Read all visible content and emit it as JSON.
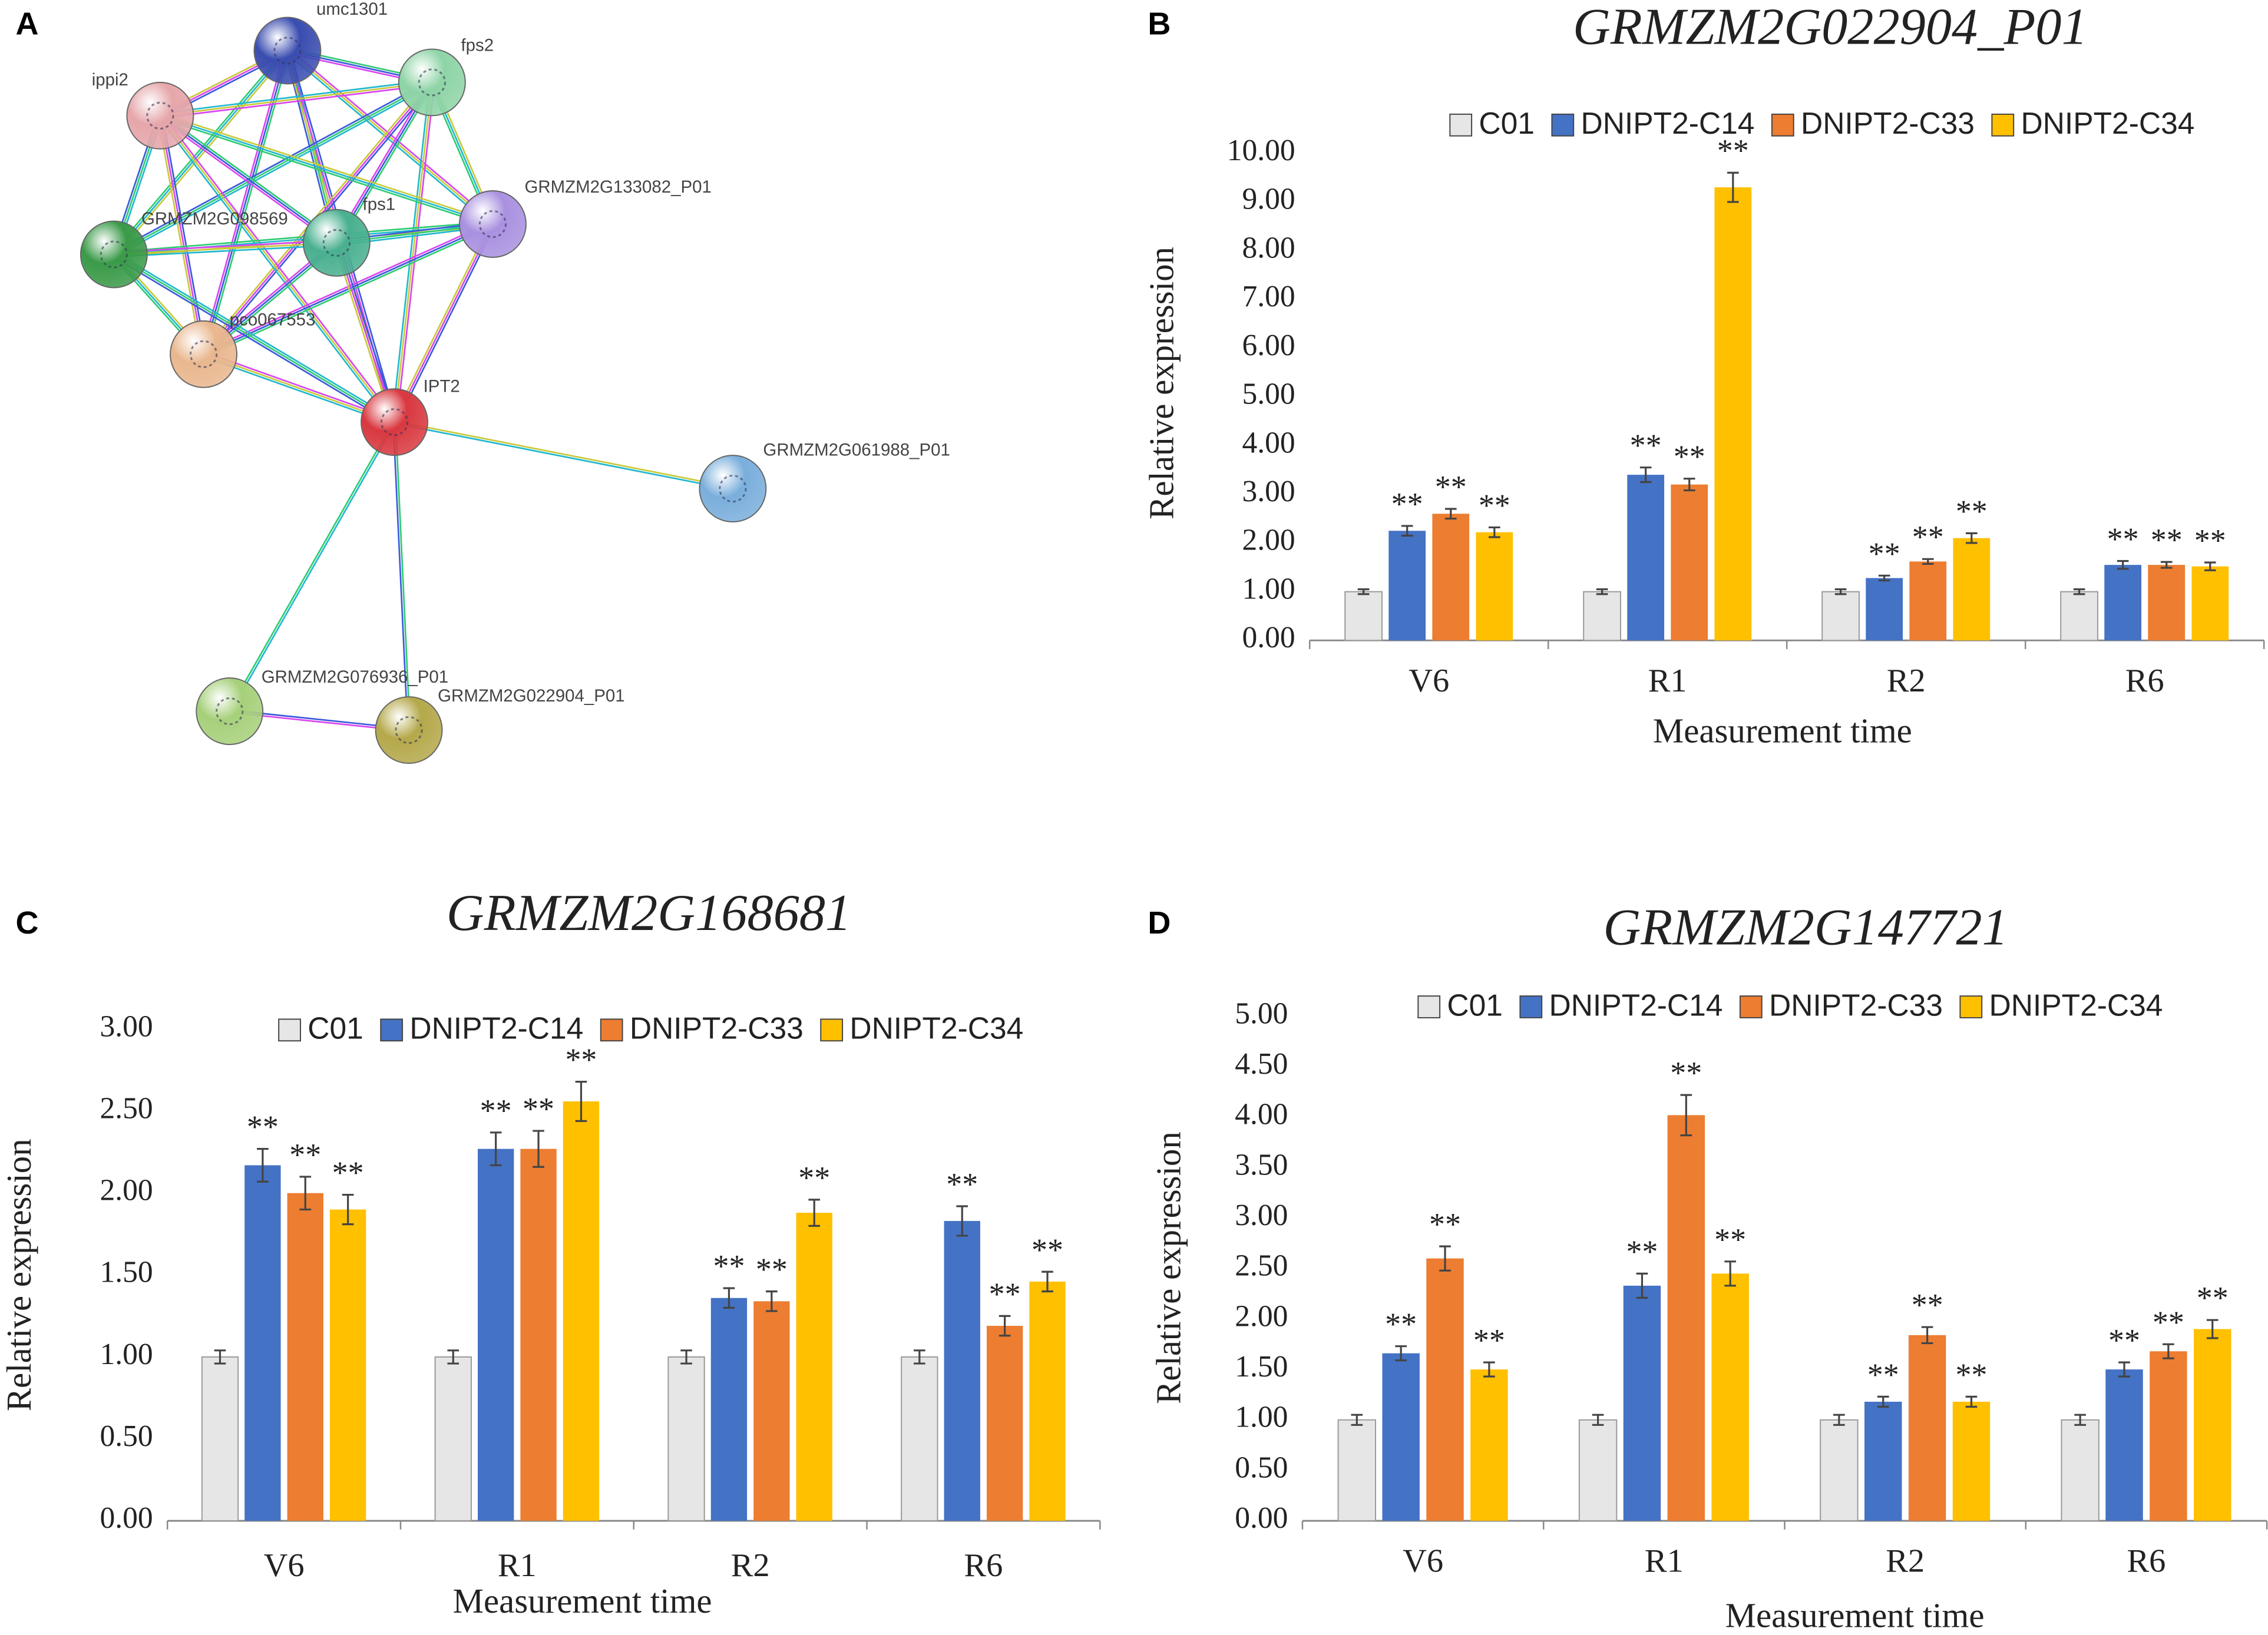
{
  "chart_data": [
    {
      "type": "network",
      "panel_label": "A",
      "nodes": [
        {
          "label": "umc1301"
        },
        {
          "label": "fps2"
        },
        {
          "label": "ippi2"
        },
        {
          "label": "GRMZM2G133082_P01"
        },
        {
          "label": "GRMZM2G098569"
        },
        {
          "label": "fps1"
        },
        {
          "label": "pco067553"
        },
        {
          "label": "IPT2"
        },
        {
          "label": "GRMZM2G061988_P01"
        },
        {
          "label": "GRMZM2G076936_P01"
        },
        {
          "label": "GRMZM2G022904_P01"
        }
      ]
    },
    {
      "type": "bar",
      "panel_label": "B",
      "title": "GRMZM2G022904_P01",
      "x_label": "Measurement time",
      "y_label": "Relative expression",
      "categories": [
        "V6",
        "R1",
        "R2",
        "R6"
      ],
      "series": [
        {
          "name": "C01",
          "color": "#e7e6e6",
          "values": [
            1.0,
            1.0,
            1.0,
            1.0
          ],
          "errors": [
            0.05,
            0.05,
            0.05,
            0.05
          ],
          "sig": [
            null,
            null,
            null,
            null
          ]
        },
        {
          "name": "DNIPT2-C14",
          "color": "#4472c4",
          "values": [
            2.25,
            3.4,
            1.28,
            1.55
          ],
          "errors": [
            0.1,
            0.15,
            0.05,
            0.08
          ],
          "sig": [
            "**",
            "**",
            "**",
            "**"
          ]
        },
        {
          "name": "DNIPT2-C33",
          "color": "#ed7d31",
          "values": [
            2.6,
            3.2,
            1.62,
            1.55
          ],
          "errors": [
            0.1,
            0.12,
            0.05,
            0.06
          ],
          "sig": [
            "**",
            "**",
            "**",
            "**"
          ]
        },
        {
          "name": "DNIPT2-C34",
          "color": "#ffc000",
          "values": [
            2.22,
            9.3,
            2.1,
            1.52
          ],
          "errors": [
            0.1,
            0.3,
            0.1,
            0.08
          ],
          "sig": [
            "**",
            "**",
            "**",
            "**"
          ]
        }
      ],
      "ylim": [
        0,
        10
      ],
      "yticks": [
        {
          "value": 0,
          "label": "0.00"
        },
        {
          "value": 1,
          "label": "1.00"
        },
        {
          "value": 2,
          "label": "2.00"
        },
        {
          "value": 3,
          "label": "3.00"
        },
        {
          "value": 4,
          "label": "4.00"
        },
        {
          "value": 5,
          "label": "5.00"
        },
        {
          "value": 6,
          "label": "6.00"
        },
        {
          "value": 7,
          "label": "7.00"
        },
        {
          "value": 8,
          "label": "8.00"
        },
        {
          "value": 9,
          "label": "9.00"
        },
        {
          "value": 10,
          "label": "10.00"
        }
      ]
    },
    {
      "type": "bar",
      "panel_label": "C",
      "title": "GRMZM2G168681",
      "x_label": "Measurement time",
      "y_label": "Relative expression",
      "categories": [
        "V6",
        "R1",
        "R2",
        "R6"
      ],
      "series": [
        {
          "name": "C01",
          "color": "#e7e6e6",
          "values": [
            1.0,
            1.0,
            1.0,
            1.0
          ],
          "errors": [
            0.04,
            0.04,
            0.04,
            0.04
          ],
          "sig": [
            null,
            null,
            null,
            null
          ]
        },
        {
          "name": "DNIPT2-C14",
          "color": "#4472c4",
          "values": [
            2.17,
            2.27,
            1.36,
            1.83
          ],
          "errors": [
            0.1,
            0.1,
            0.06,
            0.09
          ],
          "sig": [
            "**",
            "**",
            "**",
            "**"
          ]
        },
        {
          "name": "DNIPT2-C33",
          "color": "#ed7d31",
          "values": [
            2.0,
            2.27,
            1.34,
            1.19
          ],
          "errors": [
            0.1,
            0.11,
            0.06,
            0.06
          ],
          "sig": [
            "**",
            "**",
            "**",
            "**"
          ]
        },
        {
          "name": "DNIPT2-C34",
          "color": "#ffc000",
          "values": [
            1.9,
            2.56,
            1.88,
            1.46
          ],
          "errors": [
            0.09,
            0.12,
            0.08,
            0.06
          ],
          "sig": [
            "**",
            "**",
            "**",
            "**"
          ]
        }
      ],
      "ylim": [
        0,
        3
      ],
      "yticks": [
        {
          "value": 0,
          "label": "0.00"
        },
        {
          "value": 0.5,
          "label": "0.50"
        },
        {
          "value": 1,
          "label": "1.00"
        },
        {
          "value": 1.5,
          "label": "1.50"
        },
        {
          "value": 2,
          "label": "2.00"
        },
        {
          "value": 2.5,
          "label": "2.50"
        },
        {
          "value": 3,
          "label": "3.00"
        }
      ]
    },
    {
      "type": "bar",
      "panel_label": "D",
      "title": "GRMZM2G147721",
      "x_label": "Measurement time",
      "y_label": "Relative expression",
      "categories": [
        "V6",
        "R1",
        "R2",
        "R6"
      ],
      "series": [
        {
          "name": "C01",
          "color": "#e7e6e6",
          "values": [
            1.0,
            1.0,
            1.0,
            1.0
          ],
          "errors": [
            0.05,
            0.05,
            0.05,
            0.05
          ],
          "sig": [
            null,
            null,
            null,
            null
          ]
        },
        {
          "name": "DNIPT2-C14",
          "color": "#4472c4",
          "values": [
            1.66,
            2.33,
            1.18,
            1.5
          ],
          "errors": [
            0.07,
            0.12,
            0.05,
            0.07
          ],
          "sig": [
            "**",
            "**",
            "**",
            "**"
          ]
        },
        {
          "name": "DNIPT2-C33",
          "color": "#ed7d31",
          "values": [
            2.6,
            4.02,
            1.84,
            1.68
          ],
          "errors": [
            0.12,
            0.2,
            0.08,
            0.07
          ],
          "sig": [
            "**",
            "**",
            "**",
            "**"
          ]
        },
        {
          "name": "DNIPT2-C34",
          "color": "#ffc000",
          "values": [
            1.5,
            2.45,
            1.18,
            1.9
          ],
          "errors": [
            0.07,
            0.12,
            0.05,
            0.09
          ],
          "sig": [
            "**",
            "**",
            "**",
            "**"
          ]
        }
      ],
      "ylim": [
        0,
        5
      ],
      "yticks": [
        {
          "value": 0,
          "label": "0.00"
        },
        {
          "value": 0.5,
          "label": "0.50"
        },
        {
          "value": 1,
          "label": "1.00"
        },
        {
          "value": 1.5,
          "label": "1.50"
        },
        {
          "value": 2,
          "label": "2.00"
        },
        {
          "value": 2.5,
          "label": "2.50"
        },
        {
          "value": 3,
          "label": "3.00"
        },
        {
          "value": 3.5,
          "label": "3.50"
        },
        {
          "value": 4,
          "label": "4.00"
        },
        {
          "value": 4.5,
          "label": "4.50"
        },
        {
          "value": 5,
          "label": "5.00"
        }
      ]
    }
  ]
}
